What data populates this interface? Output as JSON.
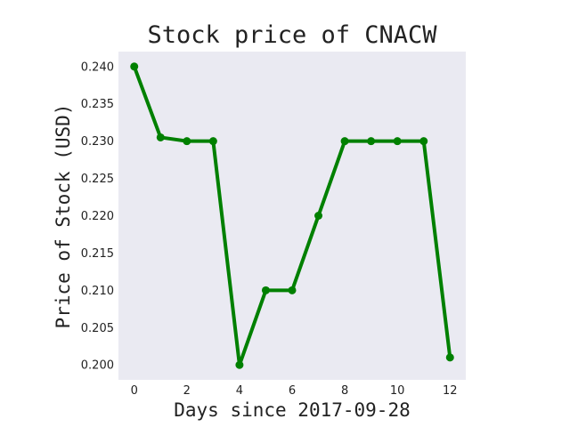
{
  "chart_data": {
    "type": "line",
    "title": "Stock price of CNACW",
    "xlabel": "Days since 2017-09-28",
    "ylabel": "Price of Stock (USD)",
    "x": [
      0,
      1,
      2,
      3,
      4,
      5,
      6,
      7,
      8,
      9,
      10,
      11,
      12
    ],
    "series": [
      {
        "values": [
          0.24,
          0.2305,
          0.23,
          0.23,
          0.2,
          0.21,
          0.21,
          0.22,
          0.23,
          0.23,
          0.23,
          0.23,
          0.201
        ],
        "color": "#008000"
      }
    ],
    "xlim": [
      -0.6,
      12.6
    ],
    "ylim": [
      0.198,
      0.242
    ],
    "xticks": [
      0,
      2,
      4,
      6,
      8,
      10,
      12
    ],
    "xtick_labels": [
      "0",
      "2",
      "4",
      "6",
      "8",
      "10",
      "12"
    ],
    "yticks": [
      0.2,
      0.205,
      0.21,
      0.215,
      0.22,
      0.225,
      0.23,
      0.235,
      0.24
    ],
    "ytick_labels": [
      "0.200",
      "0.205",
      "0.210",
      "0.215",
      "0.220",
      "0.225",
      "0.230",
      "0.235",
      "0.240"
    ],
    "grid": false,
    "background_color": "#eaeaf2"
  }
}
